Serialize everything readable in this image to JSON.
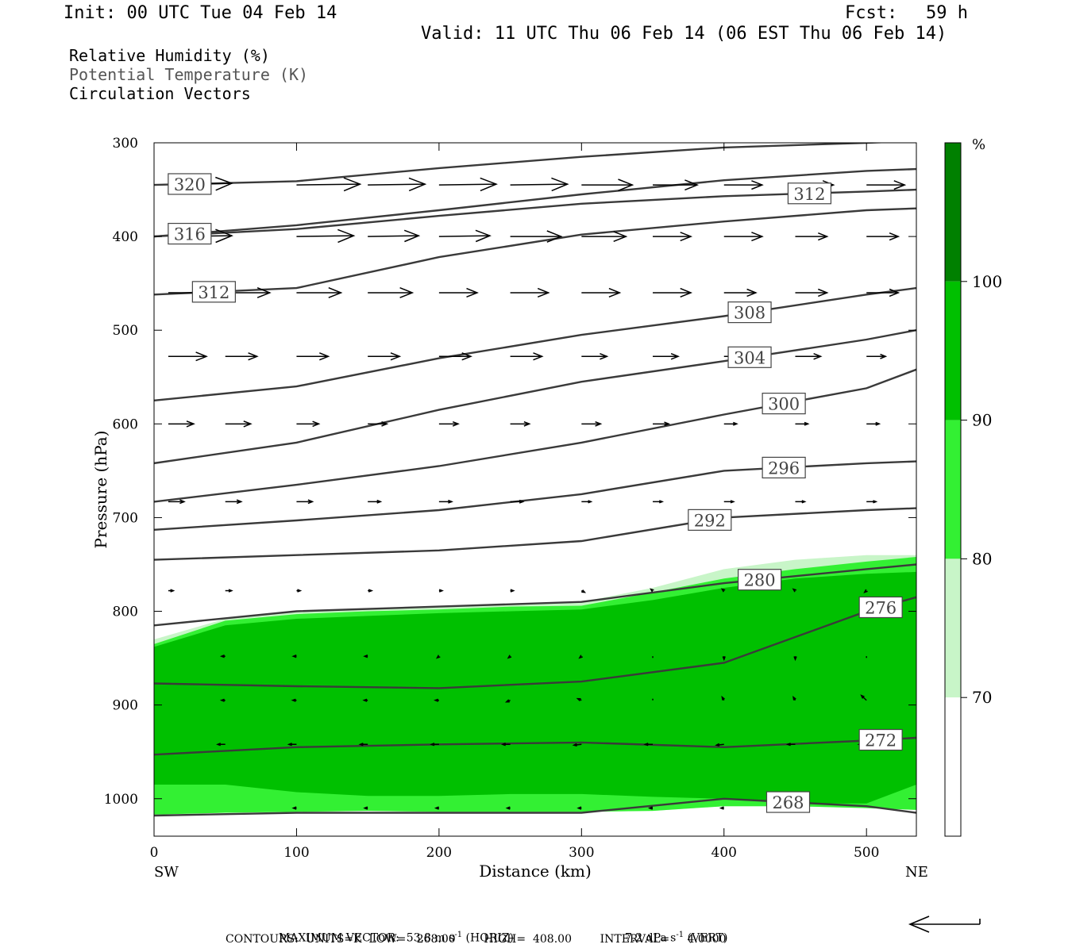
{
  "header": {
    "init": "Init: 00 UTC Tue 04 Feb 14",
    "fcst_label": "Fcst:",
    "fcst_value": "59 h",
    "valid": "Valid: 11 UTC Thu 06 Feb 14 (06 EST Thu 06 Feb 14)"
  },
  "legend_lines": {
    "rh": "Relative Humidity (%)",
    "theta": "Potential Temperature (K)",
    "vectors": "Circulation Vectors"
  },
  "footer": {
    "max_vector_label": "MAXIMUM VECTOR:",
    "max_vector_horiz_value": "53.8 m s",
    "max_vector_horiz_exp": "-1",
    "max_vector_horiz_tail": "(HORIZ)",
    "max_vector_vert_value": "7.2 dPa s",
    "max_vector_vert_exp": "-1",
    "max_vector_vert_tail": "(VERT)",
    "contours": "CONTOURS:  UNITS=K  LOW=   268.00        HIGH=  408.00        INTERVAL=     4.0000"
  },
  "colors": {
    "rh_70": "#c8f5c8",
    "rh_80": "#33f033",
    "rh_90": "#00c000",
    "rh_100": "#008000",
    "contour": "#3a3a3a",
    "vector": "#000000"
  },
  "chart_data": {
    "type": "cross-section",
    "xlabel": "Distance (km)",
    "ylabel": "Pressure (hPa)",
    "xlim": [
      0,
      535
    ],
    "ylim": [
      1040,
      300
    ],
    "x_ticks": [
      0,
      100,
      200,
      300,
      400,
      500
    ],
    "x_tick_labels": [
      "0",
      "100",
      "200",
      "300",
      "400",
      "500"
    ],
    "y_ticks": [
      300,
      400,
      500,
      600,
      700,
      800,
      900,
      1000
    ],
    "y_tick_labels": [
      "300",
      "400",
      "500",
      "600",
      "700",
      "800",
      "900",
      "1000"
    ],
    "x_end_labels": {
      "left": "SW",
      "right": "NE"
    },
    "colorbar": {
      "unit": "%",
      "levels": [
        70,
        80,
        90,
        100
      ],
      "level_labels": [
        "70",
        "80",
        "90",
        "100"
      ]
    },
    "rh_fill_tops": {
      "x": [
        0,
        50,
        100,
        150,
        200,
        250,
        300,
        350,
        400,
        450,
        500,
        535
      ],
      "rh70": [
        830,
        808,
        800,
        797,
        795,
        792,
        790,
        775,
        755,
        745,
        740,
        740
      ],
      "rh80": [
        835,
        810,
        803,
        800,
        798,
        795,
        794,
        780,
        765,
        755,
        747,
        742
      ],
      "rh90": [
        838,
        815,
        808,
        805,
        802,
        800,
        798,
        788,
        775,
        765,
        760,
        758
      ],
      "rh90_bottom": [
        985,
        985,
        993,
        997,
        997,
        995,
        995,
        998,
        1000,
        1005,
        1005,
        985
      ],
      "surface": [
        1017,
        1015,
        1014,
        1013,
        1014,
        1014,
        1014,
        1013,
        1008,
        1008,
        1010,
        1012
      ]
    },
    "isentropes": [
      {
        "label": "320",
        "label_x": 25,
        "x": [
          0,
          100,
          200,
          300,
          400,
          500,
          535
        ],
        "p": [
          345,
          341,
          327,
          315,
          305,
          300,
          298
        ]
      },
      {
        "label": "312",
        "label_x": 460,
        "x": [
          0,
          100,
          200,
          300,
          400,
          500,
          535
        ],
        "p": [
          400,
          392,
          378,
          365,
          357,
          352,
          350
        ]
      },
      {
        "label": "316",
        "label_x": 25,
        "x": [
          0,
          100,
          200,
          300,
          400,
          500,
          535
        ],
        "p": [
          400,
          388,
          372,
          355,
          340,
          330,
          328
        ]
      },
      {
        "label": "312",
        "label_x": 42,
        "x": [
          0,
          100,
          200,
          300,
          400,
          500,
          535
        ],
        "p": [
          462,
          455,
          422,
          398,
          384,
          372,
          370
        ]
      },
      {
        "label": "308",
        "label_x": 418,
        "x": [
          0,
          100,
          200,
          300,
          400,
          500,
          535
        ],
        "p": [
          575,
          560,
          530,
          505,
          485,
          462,
          455
        ]
      },
      {
        "label": "304",
        "label_x": 418,
        "x": [
          0,
          100,
          200,
          300,
          400,
          500,
          535
        ],
        "p": [
          642,
          620,
          585,
          555,
          533,
          510,
          500
        ]
      },
      {
        "label": "300",
        "label_x": 442,
        "x": [
          0,
          100,
          200,
          300,
          400,
          500,
          535
        ],
        "p": [
          683,
          665,
          645,
          620,
          590,
          562,
          542
        ]
      },
      {
        "label": "296",
        "label_x": 442,
        "x": [
          0,
          100,
          200,
          300,
          400,
          500,
          535
        ],
        "p": [
          713,
          703,
          692,
          675,
          650,
          642,
          640
        ]
      },
      {
        "label": "292",
        "label_x": 390,
        "x": [
          0,
          100,
          200,
          300,
          400,
          500,
          535
        ],
        "p": [
          745,
          740,
          735,
          725,
          700,
          692,
          690
        ]
      },
      {
        "label": "280",
        "label_x": 425,
        "x": [
          0,
          100,
          200,
          300,
          400,
          500,
          535
        ],
        "p": [
          815,
          800,
          795,
          790,
          770,
          755,
          750
        ]
      },
      {
        "label": "276",
        "label_x": 510,
        "x": [
          0,
          100,
          200,
          300,
          400,
          500,
          535
        ],
        "p": [
          877,
          880,
          882,
          875,
          855,
          800,
          785
        ]
      },
      {
        "label": "272",
        "label_x": 510,
        "x": [
          0,
          100,
          200,
          300,
          400,
          500,
          535
        ],
        "p": [
          953,
          945,
          942,
          940,
          945,
          938,
          935
        ]
      },
      {
        "label": "268",
        "label_x": 445,
        "x": [
          0,
          100,
          200,
          300,
          400,
          500,
          535
        ],
        "p": [
          1018,
          1015,
          1015,
          1015,
          1000,
          1008,
          1015
        ]
      }
    ],
    "vectors": [
      {
        "p": 345,
        "x": [
          10,
          100,
          150,
          200,
          250,
          300,
          350,
          400,
          450,
          500
        ],
        "u": [
          1.0,
          1.0,
          0.9,
          0.9,
          0.9,
          0.8,
          0.7,
          0.6,
          0.6,
          0.6
        ],
        "w": [
          0.1,
          0.05,
          0.05,
          0.05,
          0.05,
          0.0,
          0.0,
          0.0,
          0.0,
          0.0
        ]
      },
      {
        "p": 400,
        "x": [
          10,
          100,
          150,
          200,
          250,
          300,
          350,
          400,
          450,
          500
        ],
        "u": [
          1.0,
          0.9,
          0.8,
          0.8,
          0.8,
          0.7,
          0.6,
          0.6,
          0.5,
          0.5
        ],
        "w": [
          0.05,
          0.05,
          0.05,
          0.05,
          0.0,
          0.0,
          0.0,
          0.0,
          0.0,
          0.0
        ]
      },
      {
        "p": 460,
        "x": [
          10,
          50,
          100,
          150,
          200,
          250,
          300,
          350,
          400,
          450,
          500
        ],
        "u": [
          0.8,
          0.7,
          0.7,
          0.7,
          0.6,
          0.6,
          0.6,
          0.6,
          0.5,
          0.5,
          0.5
        ],
        "w": [
          0.0,
          0.0,
          0.0,
          0.0,
          0.0,
          0.0,
          0.0,
          0.0,
          0.0,
          0.0,
          0.0
        ]
      },
      {
        "p": 528,
        "x": [
          10,
          50,
          100,
          150,
          200,
          250,
          300,
          350,
          400,
          450,
          500
        ],
        "u": [
          0.6,
          0.5,
          0.5,
          0.5,
          0.5,
          0.5,
          0.4,
          0.4,
          0.4,
          0.4,
          0.3
        ],
        "w": [
          0.0,
          0.0,
          0.0,
          0.0,
          0.0,
          0.0,
          0.0,
          0.0,
          0.0,
          0.0,
          0.0
        ]
      },
      {
        "p": 600,
        "x": [
          10,
          50,
          100,
          150,
          200,
          250,
          300,
          350,
          400,
          450,
          500
        ],
        "u": [
          0.4,
          0.4,
          0.35,
          0.3,
          0.3,
          0.3,
          0.3,
          0.25,
          0.2,
          0.2,
          0.2
        ],
        "w": [
          0.0,
          0.0,
          0.0,
          0.0,
          0.0,
          0.0,
          0.0,
          0.0,
          0.0,
          0.0,
          0.0
        ]
      },
      {
        "p": 683,
        "x": [
          10,
          50,
          100,
          150,
          200,
          250,
          300,
          350,
          400,
          450,
          500
        ],
        "u": [
          0.25,
          0.25,
          0.25,
          0.2,
          0.2,
          0.2,
          0.15,
          0.15,
          0.15,
          0.15,
          0.15
        ],
        "w": [
          0.0,
          0.0,
          0.0,
          0.0,
          0.0,
          0.0,
          0.0,
          0.0,
          0.0,
          0.0,
          0.0
        ]
      },
      {
        "p": 778,
        "x": [
          10,
          50,
          100,
          150,
          200,
          250,
          300,
          350,
          400,
          450,
          500
        ],
        "u": [
          0.08,
          0.1,
          0.06,
          0.06,
          0.05,
          0.05,
          0.05,
          -0.03,
          -0.03,
          -0.03,
          -0.03
        ],
        "w": [
          0.0,
          0.0,
          0.0,
          0.0,
          0.0,
          0.0,
          -0.1,
          0.1,
          0.1,
          0.1,
          -0.1
        ]
      },
      {
        "p": 848,
        "x": [
          50,
          100,
          150,
          200,
          250,
          300,
          350,
          400,
          450,
          500
        ],
        "u": [
          -0.06,
          -0.05,
          -0.05,
          -0.03,
          -0.03,
          -0.03,
          0.0,
          0.0,
          0.0,
          0.0
        ],
        "w": [
          0.0,
          0.0,
          0.0,
          -0.1,
          -0.1,
          -0.1,
          -0.1,
          -0.2,
          -0.2,
          -0.1
        ]
      },
      {
        "p": 895,
        "x": [
          50,
          100,
          150,
          200,
          250,
          300,
          350,
          400,
          450,
          500
        ],
        "u": [
          -0.06,
          -0.06,
          -0.06,
          -0.06,
          -0.06,
          -0.06,
          0.0,
          -0.03,
          -0.03,
          -0.08
        ],
        "w": [
          0.0,
          0.0,
          0.0,
          0.0,
          -0.1,
          0.1,
          0.1,
          0.2,
          0.2,
          0.3
        ]
      },
      {
        "p": 942,
        "x": [
          50,
          100,
          150,
          200,
          250,
          300,
          350,
          400,
          450,
          500
        ],
        "u": [
          -0.12,
          -0.12,
          -0.12,
          -0.12,
          -0.12,
          -0.12,
          -0.12,
          -0.12,
          -0.12,
          -0.12
        ],
        "w": [
          0.0,
          0.0,
          0.0,
          0.0,
          0.0,
          -0.05,
          0.0,
          -0.05,
          0.0,
          0.0
        ]
      },
      {
        "p": 1010,
        "x": [
          100,
          150,
          200,
          250,
          300,
          350,
          400,
          450
        ],
        "u": [
          -0.05,
          -0.05,
          -0.05,
          -0.05,
          -0.05,
          -0.05,
          -0.05,
          -0.05
        ],
        "w": [
          0.0,
          0.0,
          0.0,
          0.0,
          0.0,
          0.0,
          0.0,
          0.0
        ]
      }
    ]
  }
}
